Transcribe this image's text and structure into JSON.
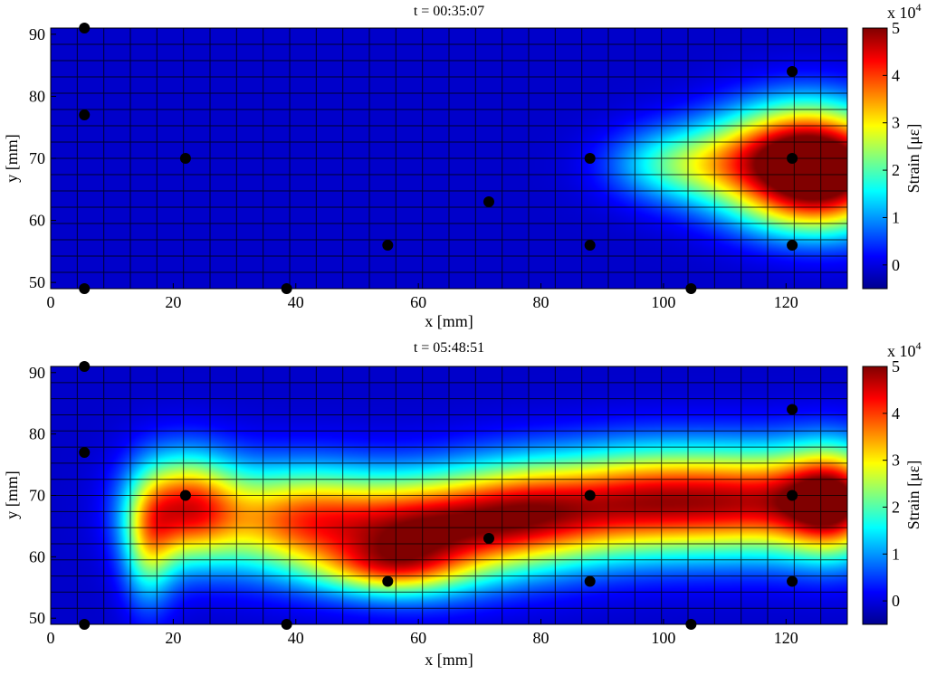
{
  "chart_data": [
    {
      "type": "heatmap",
      "title": "t = 00:35:07",
      "xlabel": "x [mm]",
      "ylabel": "y [mm]",
      "colorbar_label": "Strain [με]",
      "colorbar_exponent": "x 10",
      "colorbar_exponent_power": "4",
      "xlim": [
        0,
        130
      ],
      "ylim": [
        49,
        91
      ],
      "clim": [
        -0.5,
        5
      ],
      "xticks": [
        0,
        20,
        40,
        60,
        80,
        100,
        120
      ],
      "yticks": [
        50,
        60,
        70,
        80,
        90
      ],
      "cticks": [
        0,
        1,
        2,
        3,
        4,
        5
      ],
      "grid": true,
      "colormap": "jet",
      "hotspots": [
        {
          "x": 128,
          "y": 68,
          "sx": 9,
          "sy": 6,
          "amp": 4.6
        },
        {
          "x": 113,
          "y": 69,
          "sx": 9,
          "sy": 5,
          "amp": 2.6
        },
        {
          "x": 100,
          "y": 69,
          "sx": 7,
          "sy": 4,
          "amp": 1.2
        },
        {
          "x": 122,
          "y": 74,
          "sx": 8,
          "sy": 5,
          "amp": 1.6
        },
        {
          "x": 122,
          "y": 62,
          "sx": 8,
          "sy": 4,
          "amp": 1.3
        }
      ],
      "sensors": [
        {
          "x": 5.5,
          "y": 91
        },
        {
          "x": 5.5,
          "y": 77
        },
        {
          "x": 5.5,
          "y": 49
        },
        {
          "x": 22,
          "y": 70
        },
        {
          "x": 38.5,
          "y": 49
        },
        {
          "x": 55,
          "y": 56
        },
        {
          "x": 71.5,
          "y": 63
        },
        {
          "x": 88,
          "y": 70
        },
        {
          "x": 88,
          "y": 56
        },
        {
          "x": 104.5,
          "y": 49
        },
        {
          "x": 121,
          "y": 84
        },
        {
          "x": 121,
          "y": 70
        },
        {
          "x": 121,
          "y": 56
        }
      ]
    },
    {
      "type": "heatmap",
      "title": "t = 05:48:51",
      "xlabel": "x [mm]",
      "ylabel": "y [mm]",
      "colorbar_label": "Strain [με]",
      "colorbar_exponent": "x 10",
      "colorbar_exponent_power": "4",
      "xlim": [
        0,
        130
      ],
      "ylim": [
        49,
        91
      ],
      "clim": [
        -0.5,
        5
      ],
      "xticks": [
        0,
        20,
        40,
        60,
        80,
        100,
        120
      ],
      "yticks": [
        50,
        60,
        70,
        80,
        90
      ],
      "cticks": [
        0,
        1,
        2,
        3,
        4,
        5
      ],
      "grid": true,
      "colormap": "jet",
      "hotspots": [
        {
          "x": 22,
          "y": 68,
          "sx": 6,
          "sy": 6,
          "amp": 3.8
        },
        {
          "x": 40,
          "y": 66,
          "sx": 10,
          "sy": 6,
          "amp": 3.6
        },
        {
          "x": 60,
          "y": 64,
          "sx": 10,
          "sy": 6,
          "amp": 4.0
        },
        {
          "x": 78,
          "y": 67,
          "sx": 10,
          "sy": 6,
          "amp": 4.0
        },
        {
          "x": 97,
          "y": 69,
          "sx": 10,
          "sy": 6,
          "amp": 3.6
        },
        {
          "x": 115,
          "y": 69,
          "sx": 10,
          "sy": 6,
          "amp": 3.7
        },
        {
          "x": 128,
          "y": 69,
          "sx": 6,
          "sy": 6,
          "amp": 4.4
        },
        {
          "x": 55,
          "y": 58,
          "sx": 8,
          "sy": 3,
          "amp": 1.8
        },
        {
          "x": 16,
          "y": 62,
          "sx": 3,
          "sy": 7,
          "amp": 2.0
        }
      ],
      "sensors": [
        {
          "x": 5.5,
          "y": 91
        },
        {
          "x": 5.5,
          "y": 77
        },
        {
          "x": 5.5,
          "y": 49
        },
        {
          "x": 22,
          "y": 70
        },
        {
          "x": 38.5,
          "y": 49
        },
        {
          "x": 55,
          "y": 56
        },
        {
          "x": 71.5,
          "y": 63
        },
        {
          "x": 88,
          "y": 70
        },
        {
          "x": 88,
          "y": 56
        },
        {
          "x": 104.5,
          "y": 49
        },
        {
          "x": 121,
          "y": 84
        },
        {
          "x": 121,
          "y": 70
        },
        {
          "x": 121,
          "y": 56
        }
      ]
    }
  ]
}
